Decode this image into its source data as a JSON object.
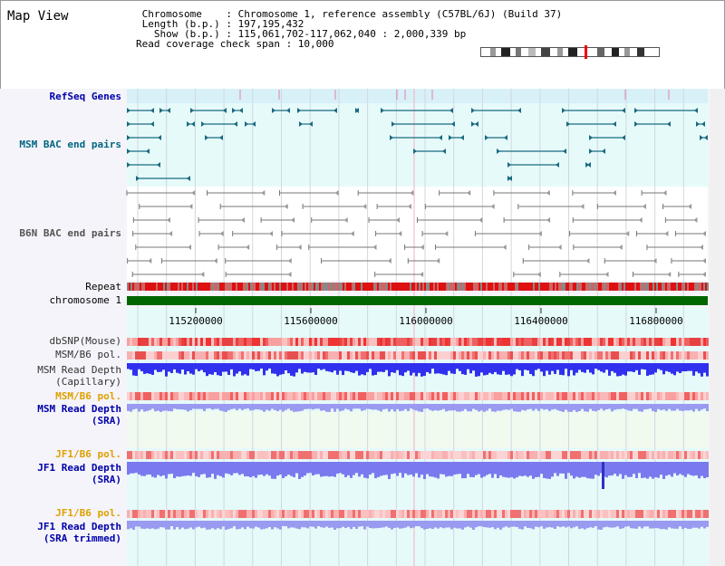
{
  "header": {
    "view_title": "Map View",
    "info_lines": [
      " Chromosome    : Chromosome 1, reference assembly (C57BL/6J) (Build 37)",
      " Length (b.p.) : 197,195,432",
      "   Show (b.p.) : 115,061,702-117,062,040 : 2,000,339 bp",
      "Read coverage check span : 10,000"
    ]
  },
  "tracks": {
    "refseq": "RefSeq Genes",
    "msm_bac": "MSM BAC end pairs",
    "b6n_bac": "B6N BAC end pairs",
    "repeat": "Repeat",
    "chromosome": "chromosome 1",
    "dbsnp": "dbSNP(Mouse)",
    "msm_b6_pol": "MSM/B6 pol.",
    "msm_depth_cap_1": "MSM Read Depth",
    "msm_depth_cap_2": "(Capillary)",
    "msm_b6_pol_sra": "MSM/B6 pol.",
    "msm_depth_sra_1": "MSM Read Depth",
    "msm_depth_sra_2": "(SRA)",
    "jf1_b6_pol": "JF1/B6 pol.",
    "jf1_depth_1": "JF1 Read Depth",
    "jf1_depth_2": "(SRA)",
    "jf1_b6_pol_trim": "JF1/B6 pol.",
    "jf1_depth_trim_1": "JF1 Read Depth",
    "jf1_depth_trim_2": "(SRA trimmed)"
  },
  "axis": {
    "ticks": [
      "115200000",
      "115600000",
      "116000000",
      "116400000",
      "116800000"
    ]
  },
  "colors": {
    "label_blue": "#0000aa",
    "label_teal": "#006680",
    "label_gray": "#555555",
    "label_orange": "#e0a000",
    "chromosome_green": "#006600"
  }
}
